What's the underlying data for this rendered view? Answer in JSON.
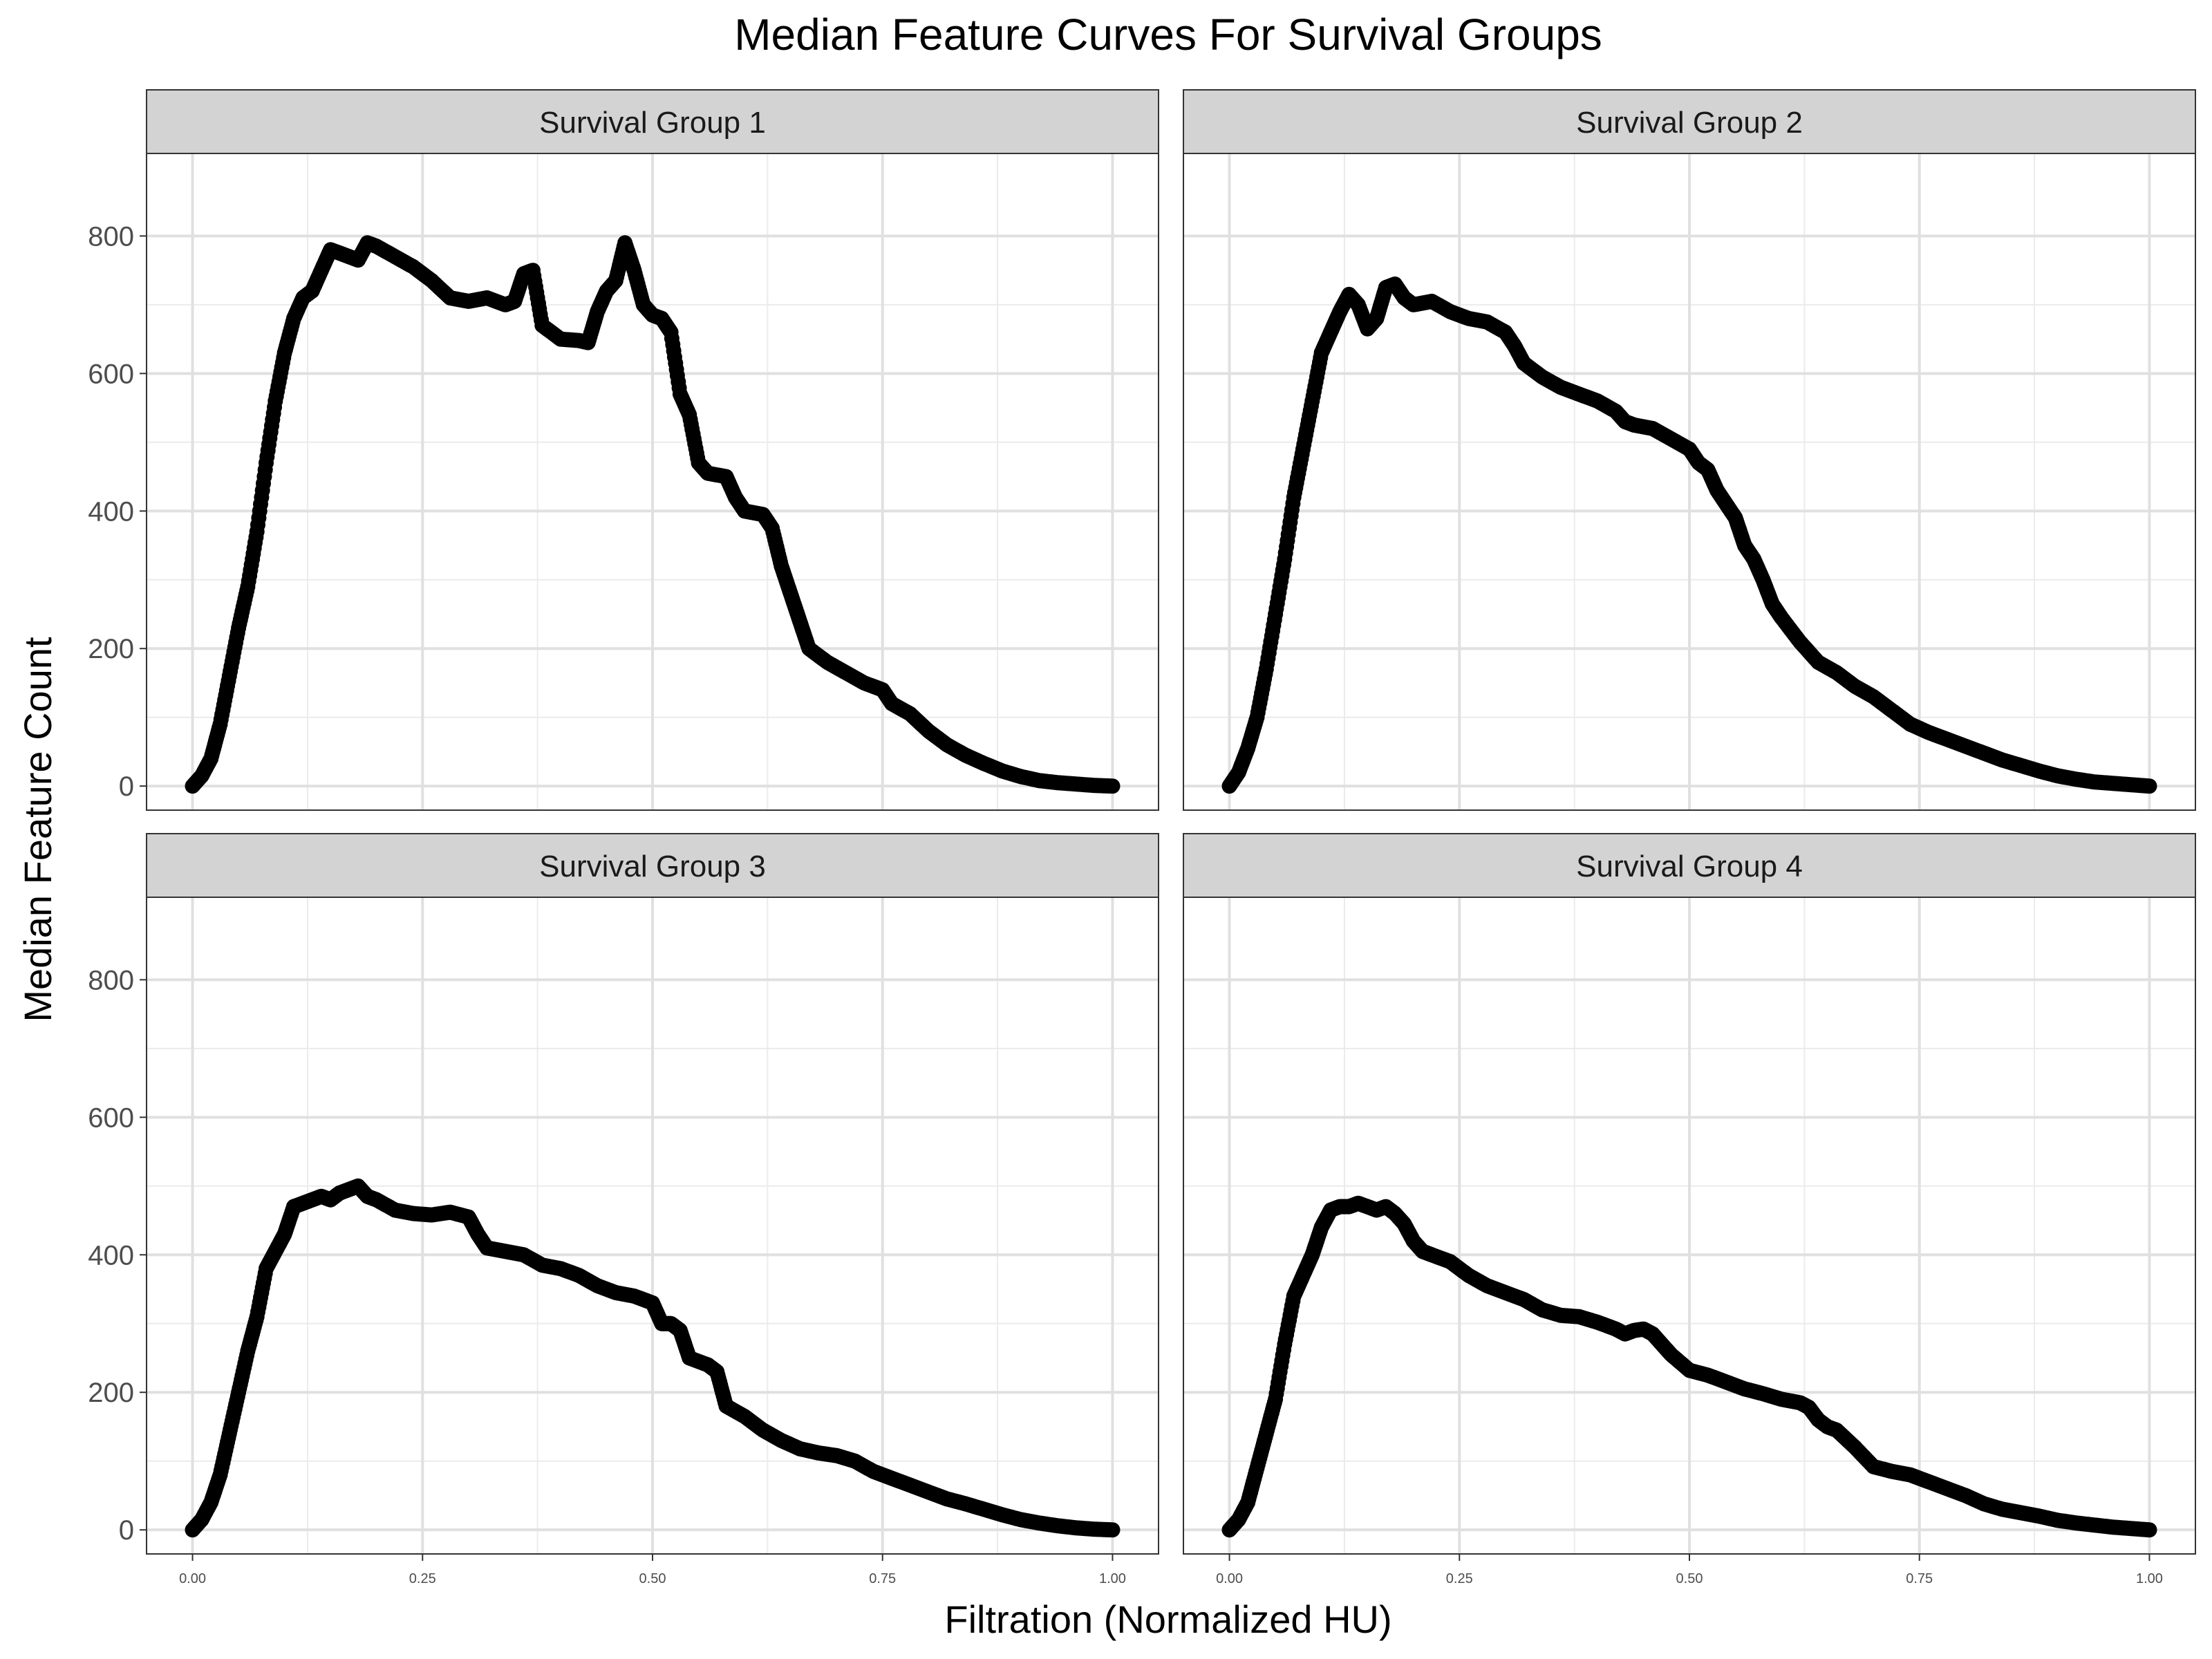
{
  "chart_data": {
    "type": "scatter",
    "title": "Median Feature Curves For Survival Groups",
    "xlabel": "Filtration (Normalized HU)",
    "ylabel": "Median Feature Count",
    "xlim": [
      -0.05,
      1.05
    ],
    "ylim": [
      -35,
      920
    ],
    "x_ticks": [
      0.0,
      0.25,
      0.5,
      0.75,
      1.0
    ],
    "x_tick_labels": [
      "0.00",
      "0.25",
      "0.50",
      "0.75",
      "1.00"
    ],
    "y_ticks": [
      0,
      200,
      400,
      600,
      800
    ],
    "y_tick_labels": [
      "0",
      "200",
      "400",
      "600",
      "800"
    ],
    "grid": true,
    "marker_color": "#000000",
    "panel_strip_color": "#d3d3d3",
    "panels": [
      {
        "label": "Survival Group 1",
        "points": [
          [
            0,
            0
          ],
          [
            0.01,
            15
          ],
          [
            0.02,
            40
          ],
          [
            0.03,
            90
          ],
          [
            0.04,
            160
          ],
          [
            0.05,
            230
          ],
          [
            0.06,
            290
          ],
          [
            0.07,
            370
          ],
          [
            0.08,
            470
          ],
          [
            0.09,
            560
          ],
          [
            0.1,
            630
          ],
          [
            0.11,
            680
          ],
          [
            0.12,
            710
          ],
          [
            0.13,
            720
          ],
          [
            0.14,
            750
          ],
          [
            0.15,
            780
          ],
          [
            0.16,
            775
          ],
          [
            0.17,
            770
          ],
          [
            0.18,
            765
          ],
          [
            0.19,
            790
          ],
          [
            0.2,
            785
          ],
          [
            0.22,
            770
          ],
          [
            0.24,
            755
          ],
          [
            0.26,
            735
          ],
          [
            0.28,
            710
          ],
          [
            0.3,
            705
          ],
          [
            0.32,
            710
          ],
          [
            0.34,
            700
          ],
          [
            0.35,
            705
          ],
          [
            0.36,
            745
          ],
          [
            0.37,
            750
          ],
          [
            0.38,
            670
          ],
          [
            0.4,
            650
          ],
          [
            0.42,
            648
          ],
          [
            0.43,
            645
          ],
          [
            0.44,
            690
          ],
          [
            0.45,
            720
          ],
          [
            0.46,
            735
          ],
          [
            0.47,
            790
          ],
          [
            0.48,
            750
          ],
          [
            0.49,
            700
          ],
          [
            0.5,
            685
          ],
          [
            0.51,
            680
          ],
          [
            0.52,
            660
          ],
          [
            0.53,
            570
          ],
          [
            0.54,
            540
          ],
          [
            0.55,
            470
          ],
          [
            0.56,
            455
          ],
          [
            0.58,
            450
          ],
          [
            0.59,
            420
          ],
          [
            0.6,
            400
          ],
          [
            0.62,
            395
          ],
          [
            0.63,
            375
          ],
          [
            0.64,
            320
          ],
          [
            0.65,
            280
          ],
          [
            0.66,
            240
          ],
          [
            0.67,
            200
          ],
          [
            0.69,
            180
          ],
          [
            0.71,
            165
          ],
          [
            0.73,
            150
          ],
          [
            0.75,
            140
          ],
          [
            0.76,
            120
          ],
          [
            0.78,
            105
          ],
          [
            0.8,
            80
          ],
          [
            0.82,
            60
          ],
          [
            0.84,
            45
          ],
          [
            0.86,
            33
          ],
          [
            0.88,
            22
          ],
          [
            0.9,
            14
          ],
          [
            0.92,
            8
          ],
          [
            0.94,
            5
          ],
          [
            0.96,
            3
          ],
          [
            0.98,
            1
          ],
          [
            1.0,
            0
          ]
        ]
      },
      {
        "label": "Survival Group 2",
        "points": [
          [
            0,
            0
          ],
          [
            0.01,
            20
          ],
          [
            0.02,
            55
          ],
          [
            0.03,
            100
          ],
          [
            0.04,
            170
          ],
          [
            0.05,
            250
          ],
          [
            0.06,
            330
          ],
          [
            0.07,
            420
          ],
          [
            0.08,
            490
          ],
          [
            0.09,
            560
          ],
          [
            0.1,
            630
          ],
          [
            0.11,
            660
          ],
          [
            0.12,
            690
          ],
          [
            0.13,
            715
          ],
          [
            0.14,
            700
          ],
          [
            0.15,
            665
          ],
          [
            0.16,
            680
          ],
          [
            0.17,
            725
          ],
          [
            0.18,
            730
          ],
          [
            0.19,
            710
          ],
          [
            0.2,
            700
          ],
          [
            0.22,
            705
          ],
          [
            0.24,
            690
          ],
          [
            0.26,
            680
          ],
          [
            0.28,
            675
          ],
          [
            0.3,
            660
          ],
          [
            0.31,
            640
          ],
          [
            0.32,
            615
          ],
          [
            0.34,
            595
          ],
          [
            0.36,
            580
          ],
          [
            0.38,
            570
          ],
          [
            0.4,
            560
          ],
          [
            0.42,
            545
          ],
          [
            0.43,
            530
          ],
          [
            0.44,
            525
          ],
          [
            0.46,
            520
          ],
          [
            0.48,
            505
          ],
          [
            0.5,
            490
          ],
          [
            0.51,
            470
          ],
          [
            0.52,
            460
          ],
          [
            0.53,
            430
          ],
          [
            0.54,
            410
          ],
          [
            0.55,
            390
          ],
          [
            0.56,
            350
          ],
          [
            0.57,
            330
          ],
          [
            0.58,
            300
          ],
          [
            0.59,
            265
          ],
          [
            0.6,
            245
          ],
          [
            0.62,
            210
          ],
          [
            0.64,
            180
          ],
          [
            0.66,
            165
          ],
          [
            0.68,
            145
          ],
          [
            0.7,
            130
          ],
          [
            0.72,
            110
          ],
          [
            0.74,
            90
          ],
          [
            0.76,
            78
          ],
          [
            0.78,
            68
          ],
          [
            0.8,
            58
          ],
          [
            0.82,
            48
          ],
          [
            0.84,
            38
          ],
          [
            0.86,
            30
          ],
          [
            0.88,
            22
          ],
          [
            0.9,
            15
          ],
          [
            0.92,
            10
          ],
          [
            0.94,
            6
          ],
          [
            0.96,
            4
          ],
          [
            0.98,
            2
          ],
          [
            1.0,
            0
          ]
        ]
      },
      {
        "label": "Survival Group 3",
        "points": [
          [
            0,
            0
          ],
          [
            0.01,
            15
          ],
          [
            0.02,
            40
          ],
          [
            0.03,
            80
          ],
          [
            0.04,
            140
          ],
          [
            0.05,
            200
          ],
          [
            0.06,
            260
          ],
          [
            0.07,
            310
          ],
          [
            0.08,
            380
          ],
          [
            0.09,
            405
          ],
          [
            0.1,
            430
          ],
          [
            0.11,
            470
          ],
          [
            0.12,
            475
          ],
          [
            0.13,
            480
          ],
          [
            0.14,
            485
          ],
          [
            0.15,
            480
          ],
          [
            0.16,
            490
          ],
          [
            0.17,
            495
          ],
          [
            0.18,
            500
          ],
          [
            0.19,
            485
          ],
          [
            0.2,
            480
          ],
          [
            0.22,
            465
          ],
          [
            0.24,
            460
          ],
          [
            0.26,
            458
          ],
          [
            0.28,
            462
          ],
          [
            0.3,
            455
          ],
          [
            0.31,
            430
          ],
          [
            0.32,
            410
          ],
          [
            0.34,
            405
          ],
          [
            0.36,
            400
          ],
          [
            0.38,
            385
          ],
          [
            0.4,
            380
          ],
          [
            0.42,
            370
          ],
          [
            0.44,
            355
          ],
          [
            0.46,
            345
          ],
          [
            0.48,
            340
          ],
          [
            0.5,
            330
          ],
          [
            0.51,
            300
          ],
          [
            0.52,
            300
          ],
          [
            0.53,
            290
          ],
          [
            0.54,
            250
          ],
          [
            0.56,
            240
          ],
          [
            0.57,
            230
          ],
          [
            0.58,
            180
          ],
          [
            0.6,
            165
          ],
          [
            0.62,
            145
          ],
          [
            0.64,
            130
          ],
          [
            0.66,
            118
          ],
          [
            0.68,
            112
          ],
          [
            0.7,
            108
          ],
          [
            0.72,
            100
          ],
          [
            0.74,
            85
          ],
          [
            0.76,
            75
          ],
          [
            0.78,
            65
          ],
          [
            0.8,
            55
          ],
          [
            0.82,
            45
          ],
          [
            0.84,
            38
          ],
          [
            0.86,
            30
          ],
          [
            0.88,
            22
          ],
          [
            0.9,
            15
          ],
          [
            0.92,
            10
          ],
          [
            0.94,
            6
          ],
          [
            0.96,
            3
          ],
          [
            0.98,
            1
          ],
          [
            1.0,
            0
          ]
        ]
      },
      {
        "label": "Survival Group 4",
        "points": [
          [
            0,
            0
          ],
          [
            0.01,
            15
          ],
          [
            0.02,
            40
          ],
          [
            0.03,
            90
          ],
          [
            0.04,
            140
          ],
          [
            0.05,
            190
          ],
          [
            0.06,
            270
          ],
          [
            0.07,
            340
          ],
          [
            0.08,
            370
          ],
          [
            0.09,
            400
          ],
          [
            0.1,
            440
          ],
          [
            0.11,
            465
          ],
          [
            0.12,
            470
          ],
          [
            0.13,
            470
          ],
          [
            0.14,
            475
          ],
          [
            0.15,
            470
          ],
          [
            0.16,
            465
          ],
          [
            0.17,
            470
          ],
          [
            0.18,
            460
          ],
          [
            0.19,
            445
          ],
          [
            0.2,
            420
          ],
          [
            0.21,
            405
          ],
          [
            0.22,
            400
          ],
          [
            0.24,
            390
          ],
          [
            0.26,
            370
          ],
          [
            0.28,
            355
          ],
          [
            0.3,
            345
          ],
          [
            0.32,
            335
          ],
          [
            0.34,
            320
          ],
          [
            0.36,
            312
          ],
          [
            0.38,
            310
          ],
          [
            0.4,
            302
          ],
          [
            0.42,
            292
          ],
          [
            0.43,
            285
          ],
          [
            0.44,
            290
          ],
          [
            0.45,
            292
          ],
          [
            0.46,
            285
          ],
          [
            0.47,
            270
          ],
          [
            0.48,
            255
          ],
          [
            0.5,
            232
          ],
          [
            0.52,
            225
          ],
          [
            0.54,
            215
          ],
          [
            0.56,
            205
          ],
          [
            0.58,
            198
          ],
          [
            0.6,
            190
          ],
          [
            0.62,
            185
          ],
          [
            0.63,
            178
          ],
          [
            0.64,
            160
          ],
          [
            0.65,
            150
          ],
          [
            0.66,
            145
          ],
          [
            0.68,
            120
          ],
          [
            0.7,
            92
          ],
          [
            0.72,
            85
          ],
          [
            0.74,
            80
          ],
          [
            0.76,
            70
          ],
          [
            0.78,
            60
          ],
          [
            0.8,
            50
          ],
          [
            0.82,
            38
          ],
          [
            0.84,
            30
          ],
          [
            0.86,
            25
          ],
          [
            0.88,
            20
          ],
          [
            0.9,
            14
          ],
          [
            0.92,
            10
          ],
          [
            0.94,
            7
          ],
          [
            0.96,
            4
          ],
          [
            0.98,
            2
          ],
          [
            1.0,
            0
          ]
        ]
      }
    ]
  }
}
